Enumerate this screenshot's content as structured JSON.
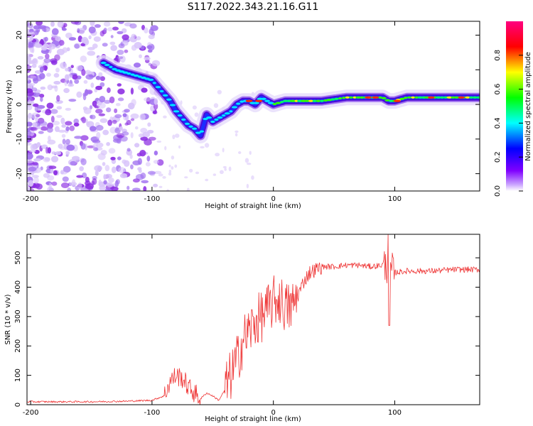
{
  "chart_data": [
    {
      "type": "heatmap",
      "title": "S117.2022.343.21.16.G11",
      "xlabel": "Height of straight line (km)",
      "ylabel": "Frequency (Hz)",
      "xlim": [
        -203,
        170
      ],
      "ylim": [
        -25,
        24
      ],
      "x_ticks": [
        -200,
        -100,
        0,
        100
      ],
      "x_tick_labels": [
        "-200",
        "-100",
        "0",
        "100"
      ],
      "y_ticks": [
        -20,
        -10,
        0,
        10,
        20
      ],
      "y_tick_labels": [
        "-20",
        "-10",
        "0",
        "10",
        "20"
      ],
      "ridge": {
        "x": [
          -140,
          -130,
          -120,
          -110,
          -100,
          -95,
          -90,
          -85,
          -80,
          -75,
          -70,
          -65,
          -60,
          -55,
          -50,
          -45,
          -40,
          -35,
          -30,
          -25,
          -20,
          -15,
          -10,
          -5,
          0,
          10,
          20,
          40,
          60,
          70,
          80,
          90,
          95,
          100,
          110,
          170
        ],
        "y": [
          12,
          10,
          9,
          8,
          7,
          5,
          3,
          1,
          -2,
          -4,
          -6,
          -7,
          -9,
          -3,
          -5,
          -4,
          -3,
          -2,
          0,
          1,
          1,
          0,
          2,
          1,
          0,
          1,
          1,
          1,
          2,
          2,
          2,
          2,
          1,
          1,
          2,
          2
        ]
      },
      "colorbar": {
        "label": "Normalized spectral amplitude",
        "range": [
          0,
          1
        ],
        "ticks": [
          0,
          0.2,
          0.4,
          0.6,
          0.8
        ],
        "tick_labels": [
          "0.0",
          "0.2",
          "0.4",
          "0.6",
          "0.8"
        ],
        "colors": [
          "#ffffff",
          "#8000ff",
          "#0000ff",
          "#00ffff",
          "#00ff00",
          "#ffff00",
          "#ff0000",
          "#ff0080"
        ]
      }
    },
    {
      "type": "line",
      "title": "",
      "xlabel": "Height of straight line (km)",
      "ylabel": "SNR (10 * v/v)",
      "xlim": [
        -203,
        170
      ],
      "ylim": [
        0,
        580
      ],
      "x_ticks": [
        -200,
        -100,
        0,
        100
      ],
      "x_tick_labels": [
        "-200",
        "-100",
        "0",
        "100"
      ],
      "y_ticks": [
        0,
        100,
        200,
        300,
        400,
        500
      ],
      "y_tick_labels": [
        "0",
        "100",
        "200",
        "300",
        "400",
        "500"
      ],
      "series": [
        {
          "name": "SNR",
          "color": "#ee3333",
          "x": [
            -203,
            -150,
            -120,
            -100,
            -90,
            -85,
            -80,
            -75,
            -70,
            -60,
            -55,
            -50,
            -45,
            -40,
            -35,
            -30,
            -25,
            -20,
            -15,
            -10,
            -5,
            0,
            5,
            10,
            15,
            20,
            25,
            30,
            40,
            50,
            60,
            70,
            80,
            90,
            95,
            100,
            110,
            130,
            150,
            170
          ],
          "values": [
            10,
            10,
            12,
            15,
            30,
            80,
            100,
            90,
            60,
            20,
            40,
            30,
            15,
            50,
            100,
            150,
            220,
            250,
            280,
            300,
            320,
            350,
            360,
            330,
            330,
            370,
            420,
            450,
            470,
            470,
            475,
            475,
            470,
            475,
            470,
            450,
            455,
            455,
            460,
            460
          ]
        }
      ]
    }
  ]
}
